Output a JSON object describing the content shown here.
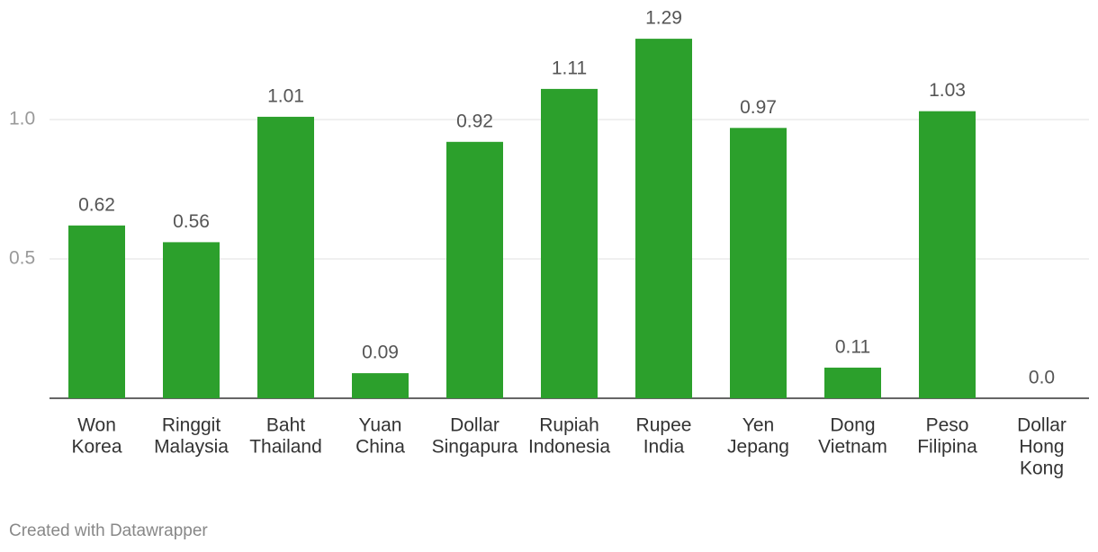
{
  "chart_data": {
    "type": "bar",
    "categories": [
      [
        "Won",
        "Korea"
      ],
      [
        "Ringgit",
        "Malaysia"
      ],
      [
        "Baht",
        "Thailand"
      ],
      [
        "Yuan",
        "China"
      ],
      [
        "Dollar",
        "Singapura"
      ],
      [
        "Rupiah",
        "Indonesia"
      ],
      [
        "Rupee",
        "India"
      ],
      [
        "Yen",
        "Jepang"
      ],
      [
        "Dong",
        "Vietnam"
      ],
      [
        "Peso",
        "Filipina"
      ],
      [
        "Dollar",
        "Hong",
        "Kong"
      ]
    ],
    "values": [
      0.62,
      0.56,
      1.01,
      0.09,
      0.92,
      1.11,
      1.29,
      0.97,
      0.11,
      1.03,
      0
    ],
    "value_labels": [
      "0.62",
      "0.56",
      "1.01",
      "0.09",
      "0.92",
      "1.11",
      "1.29",
      "0.97",
      "0.11",
      "1.03",
      "0.0"
    ],
    "color": "#2ca02c",
    "ylim": [
      0,
      1.3
    ],
    "yticks": [
      0.5,
      {
        "value": 1,
        "label": "1.0"
      }
    ],
    "grid": true,
    "footer": "Created with Datawrapper"
  }
}
